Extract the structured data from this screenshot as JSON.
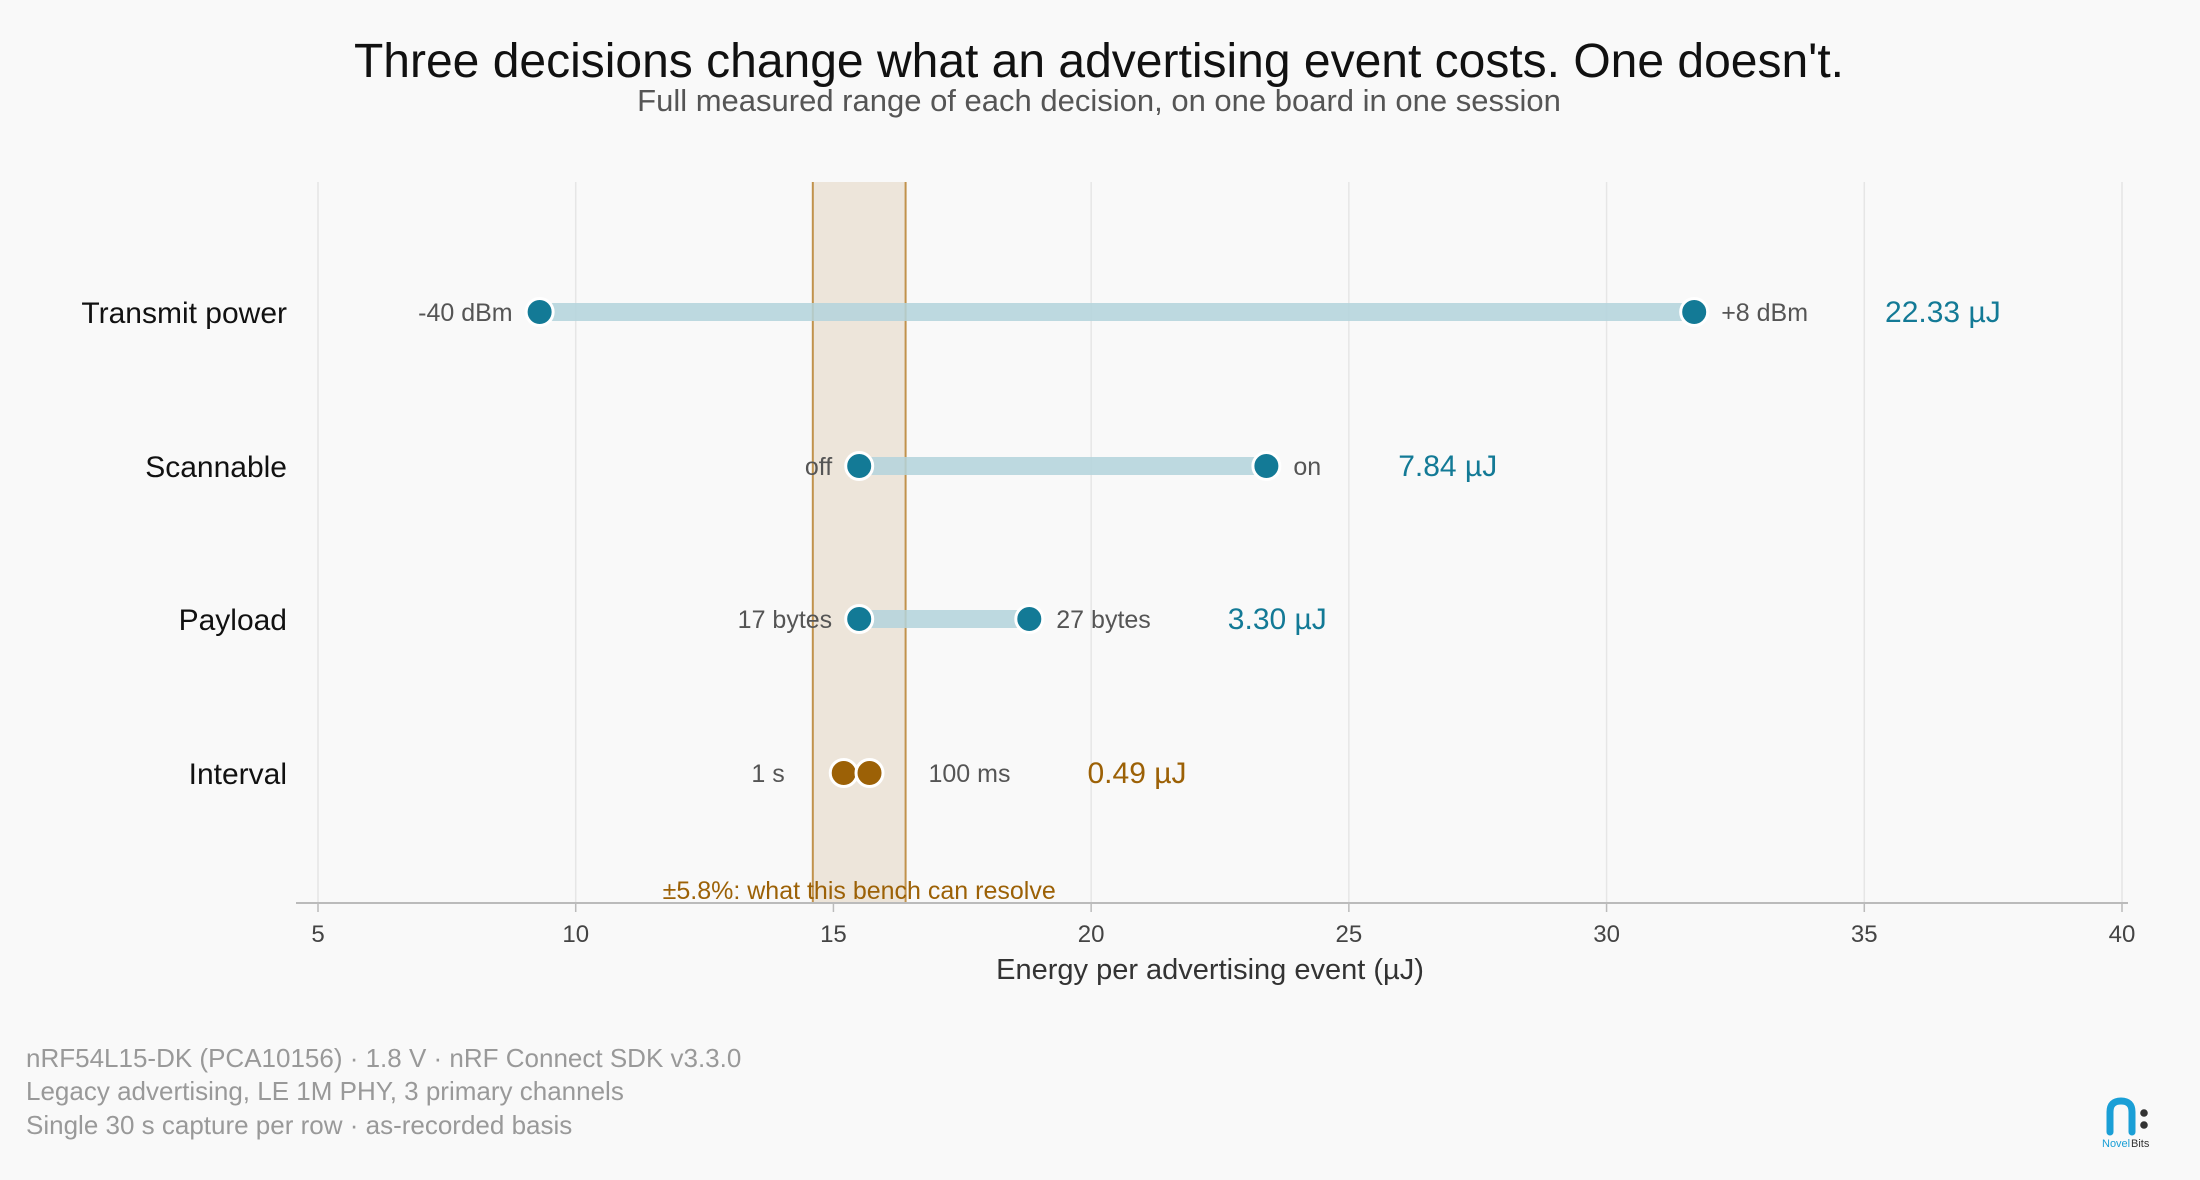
{
  "title": "Three decisions change what an advertising event costs. One doesn't.",
  "subtitle": "Full measured range of each decision, on one board in one session",
  "colors": {
    "accent": "#137a96",
    "range_bar": "#b3d3dc",
    "highlight": "#9c6106",
    "band_fill": "#ede5da",
    "band_line": "#c1924c",
    "grid": "#e6e6e6",
    "axis": "#bbbbbb"
  },
  "chart_data": {
    "type": "dumbbell",
    "xlabel": "Energy per advertising event (µJ)",
    "xlim": [
      5,
      40
    ],
    "xticks": [
      5,
      10,
      15,
      20,
      25,
      30,
      35,
      40
    ],
    "grid": true,
    "reference_band": {
      "range": [
        14.6,
        16.4
      ],
      "label": "±5.8%: what this bench can resolve"
    },
    "rows": [
      {
        "label": "Transmit power",
        "low": {
          "value": 9.3,
          "label": "-40 dBm"
        },
        "high": {
          "value": 31.7,
          "label": "+8 dBm"
        },
        "delta": "22.33 µJ",
        "highlight": false
      },
      {
        "label": "Scannable",
        "low": {
          "value": 15.5,
          "label": "off"
        },
        "high": {
          "value": 23.4,
          "label": "on"
        },
        "delta": "7.84 µJ",
        "highlight": false
      },
      {
        "label": "Payload",
        "low": {
          "value": 15.5,
          "label": "17 bytes"
        },
        "high": {
          "value": 18.8,
          "label": "27 bytes"
        },
        "delta": "3.30 µJ",
        "highlight": false
      },
      {
        "label": "Interval",
        "low": {
          "value": 15.2,
          "label": "1 s"
        },
        "high": {
          "value": 15.7,
          "label": "100 ms"
        },
        "delta": "0.49 µJ",
        "highlight": true
      }
    ]
  },
  "footnotes": [
    "nRF54L15-DK (PCA10156) · 1.8 V · nRF Connect SDK v3.3.0",
    "Legacy advertising, LE 1M PHY, 3 primary channels",
    "Single 30 s capture per row · as-recorded basis"
  ],
  "logo": {
    "word1": "Novel",
    "word2": "Bits"
  }
}
